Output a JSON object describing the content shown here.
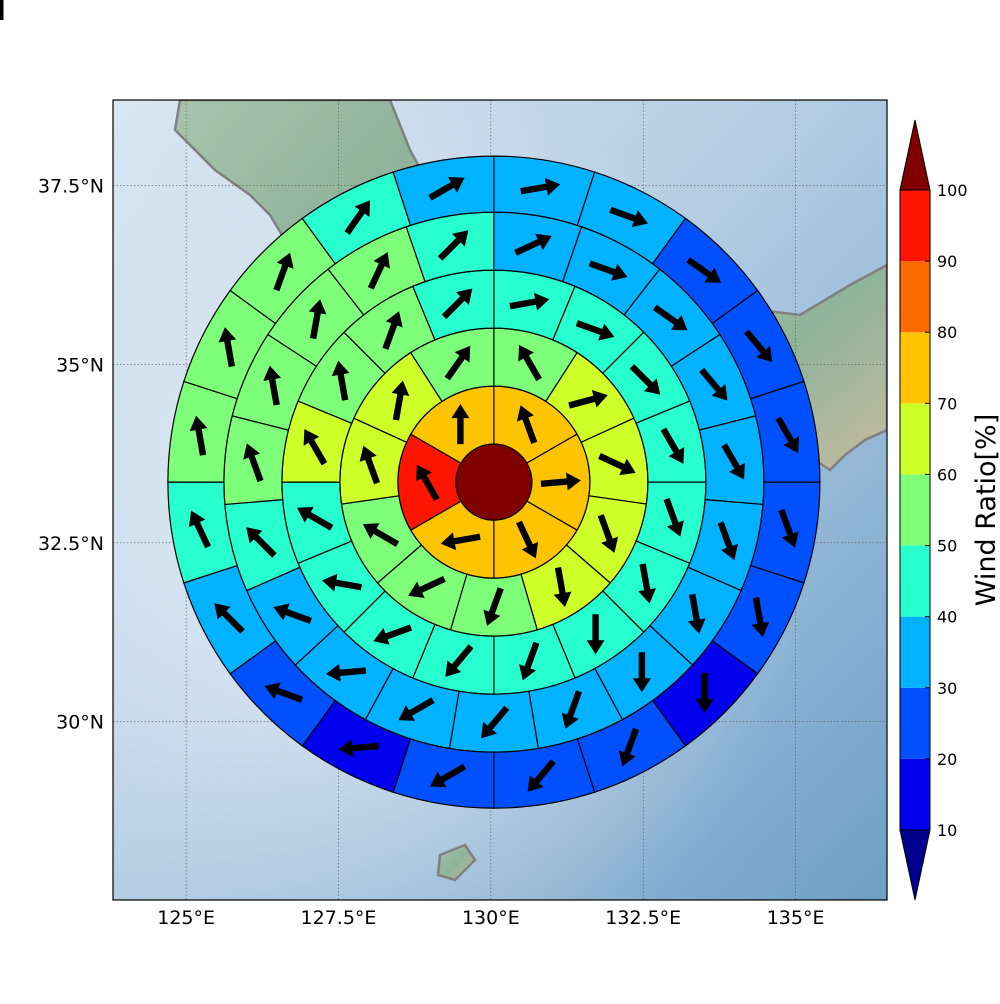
{
  "map": {
    "lon_range": [
      123.8,
      136.5
    ],
    "lat_range": [
      27.5,
      38.7
    ],
    "x_ticks": [
      {
        "lon": 125.0,
        "label": "125°E"
      },
      {
        "lon": 127.5,
        "label": "127.5°E"
      },
      {
        "lon": 130.0,
        "label": "130°E"
      },
      {
        "lon": 132.5,
        "label": "132.5°E"
      },
      {
        "lon": 135.0,
        "label": "135°E"
      }
    ],
    "y_ticks": [
      {
        "lat": 30.0,
        "label": "30°N"
      },
      {
        "lat": 32.5,
        "label": "32.5°N"
      },
      {
        "lat": 35.0,
        "label": "35°N"
      },
      {
        "lat": 37.5,
        "label": "37.5°N"
      }
    ],
    "gridlines": true,
    "coastline_color": "#808080"
  },
  "colorbar": {
    "label": "Wind Ratio[%]",
    "ticks": [
      "10",
      "20",
      "30",
      "40",
      "50",
      "60",
      "70",
      "80",
      "90",
      "100"
    ],
    "over_color": "#800000",
    "under_color": "#00008f",
    "bins": [
      {
        "min": 10,
        "max": 20,
        "color": "#0000ee"
      },
      {
        "min": 20,
        "max": 30,
        "color": "#0050ff"
      },
      {
        "min": 30,
        "max": 40,
        "color": "#00b2ff"
      },
      {
        "min": 40,
        "max": 50,
        "color": "#28ffce"
      },
      {
        "min": 50,
        "max": 60,
        "color": "#7dff7a"
      },
      {
        "min": 60,
        "max": 70,
        "color": "#ceff29"
      },
      {
        "min": 70,
        "max": 80,
        "color": "#ffc400"
      },
      {
        "min": 80,
        "max": 90,
        "color": "#ff6a00"
      },
      {
        "min": 90,
        "max": 100,
        "color": "#ff1500"
      }
    ]
  },
  "polar_grid": {
    "center_lon": 130.05,
    "center_lat": 33.35,
    "center": {
      "ratio": 100,
      "color": "#800000"
    },
    "rings": [
      {
        "sectors": [
          {
            "ratio": 75,
            "dir": 340
          },
          {
            "ratio": 75,
            "dir": 85
          },
          {
            "ratio": 75,
            "dir": 155
          },
          {
            "ratio": 75,
            "dir": 260
          },
          {
            "ratio": 95,
            "dir": 330
          },
          {
            "ratio": 75,
            "dir": 0
          }
        ]
      },
      {
        "sectors": [
          {
            "ratio": 55,
            "dir": 330
          },
          {
            "ratio": 65,
            "dir": 75
          },
          {
            "ratio": 65,
            "dir": 115
          },
          {
            "ratio": 65,
            "dir": 160
          },
          {
            "ratio": 65,
            "dir": 170
          },
          {
            "ratio": 55,
            "dir": 200
          },
          {
            "ratio": 55,
            "dir": 245
          },
          {
            "ratio": 55,
            "dir": 300
          },
          {
            "ratio": 65,
            "dir": 340
          },
          {
            "ratio": 65,
            "dir": 10
          },
          {
            "ratio": 55,
            "dir": 35
          }
        ]
      },
      {
        "sectors": [
          {
            "ratio": 45,
            "dir": 80
          },
          {
            "ratio": 45,
            "dir": 110
          },
          {
            "ratio": 45,
            "dir": 135
          },
          {
            "ratio": 45,
            "dir": 150
          },
          {
            "ratio": 45,
            "dir": 160
          },
          {
            "ratio": 45,
            "dir": 170
          },
          {
            "ratio": 45,
            "dir": 180
          },
          {
            "ratio": 45,
            "dir": 200
          },
          {
            "ratio": 45,
            "dir": 220
          },
          {
            "ratio": 45,
            "dir": 250
          },
          {
            "ratio": 45,
            "dir": 280
          },
          {
            "ratio": 45,
            "dir": 300
          },
          {
            "ratio": 65,
            "dir": 330
          },
          {
            "ratio": 55,
            "dir": 350
          },
          {
            "ratio": 55,
            "dir": 20
          },
          {
            "ratio": 45,
            "dir": 45
          }
        ]
      },
      {
        "sectors": [
          {
            "ratio": 35,
            "dir": 65
          },
          {
            "ratio": 35,
            "dir": 110
          },
          {
            "ratio": 35,
            "dir": 125
          },
          {
            "ratio": 35,
            "dir": 140
          },
          {
            "ratio": 35,
            "dir": 150
          },
          {
            "ratio": 35,
            "dir": 160
          },
          {
            "ratio": 35,
            "dir": 170
          },
          {
            "ratio": 35,
            "dir": 180
          },
          {
            "ratio": 35,
            "dir": 200
          },
          {
            "ratio": 35,
            "dir": 220
          },
          {
            "ratio": 35,
            "dir": 240
          },
          {
            "ratio": 35,
            "dir": 265
          },
          {
            "ratio": 35,
            "dir": 290
          },
          {
            "ratio": 45,
            "dir": 315
          },
          {
            "ratio": 55,
            "dir": 340
          },
          {
            "ratio": 55,
            "dir": 350
          },
          {
            "ratio": 55,
            "dir": 10
          },
          {
            "ratio": 55,
            "dir": 25
          },
          {
            "ratio": 45,
            "dir": 45
          }
        ]
      },
      {
        "sectors": [
          {
            "ratio": 35,
            "dir": 80
          },
          {
            "ratio": 35,
            "dir": 110
          },
          {
            "ratio": 25,
            "dir": 125
          },
          {
            "ratio": 25,
            "dir": 140
          },
          {
            "ratio": 25,
            "dir": 150
          },
          {
            "ratio": 25,
            "dir": 160
          },
          {
            "ratio": 25,
            "dir": 170
          },
          {
            "ratio": 15,
            "dir": 180
          },
          {
            "ratio": 25,
            "dir": 200
          },
          {
            "ratio": 25,
            "dir": 220
          },
          {
            "ratio": 25,
            "dir": 240
          },
          {
            "ratio": 15,
            "dir": 265
          },
          {
            "ratio": 25,
            "dir": 290
          },
          {
            "ratio": 35,
            "dir": 315
          },
          {
            "ratio": 45,
            "dir": 335
          },
          {
            "ratio": 55,
            "dir": 350
          },
          {
            "ratio": 55,
            "dir": 350
          },
          {
            "ratio": 55,
            "dir": 20
          },
          {
            "ratio": 45,
            "dir": 35
          },
          {
            "ratio": 35,
            "dir": 60
          }
        ]
      },
      {
        "sectors": [
          {
            "ratio": 25,
            "dir": 75
          },
          {
            "ratio": 15,
            "dir": 90
          },
          {
            "ratio": 15,
            "dir": 120
          },
          {
            "ratio": 25,
            "dir": 135
          },
          {
            "ratio": 35,
            "dir": 145
          },
          {
            "ratio": 25,
            "dir": 155
          },
          {
            "ratio": 25,
            "dir": 160
          },
          {
            "ratio": 15,
            "dir": 170
          },
          {
            "ratio": 15,
            "dir": 180
          },
          {
            "ratio": 15,
            "dir": 200
          },
          {
            "ratio": 15,
            "dir": 215
          },
          {
            "ratio": 15,
            "dir": 235
          },
          {
            "ratio": 15,
            "dir": 250
          },
          {
            "ratio": 15,
            "dir": 265
          },
          {
            "ratio": 15,
            "dir": 285
          },
          {
            "ratio": 25,
            "dir": 300
          },
          {
            "ratio": 35,
            "dir": 315
          },
          {
            "ratio": 45,
            "dir": 335
          },
          {
            "ratio": 55,
            "dir": 345
          },
          {
            "ratio": 55,
            "dir": 350
          },
          {
            "ratio": 55,
            "dir": 20
          },
          {
            "ratio": 45,
            "dir": 30
          },
          {
            "ratio": 35,
            "dir": 60
          },
          {
            "ratio": 25,
            "dir": 70
          }
        ]
      }
    ]
  }
}
